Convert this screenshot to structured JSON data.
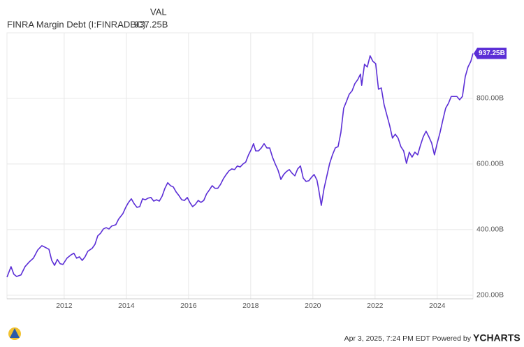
{
  "chart_data": {
    "type": "line",
    "value_header": "VAL",
    "footer": "Apr 3, 2025, 7:24 PM EDT Powered by",
    "brand": "YCHARTS",
    "grid": true,
    "xlim": [
      2010.16,
      2025.15
    ],
    "xticks": [
      2012,
      2014,
      2016,
      2018,
      2020,
      2022,
      2024
    ],
    "ylim": [
      189,
      1000
    ],
    "yticks": [
      {
        "value": 200,
        "label": "200.00B"
      },
      {
        "value": 400,
        "label": "400.00B"
      },
      {
        "value": 600,
        "label": "600.00B"
      },
      {
        "value": 800,
        "label": "800.00B"
      }
    ],
    "x": [
      2010.16,
      2010.29,
      2010.38,
      2010.47,
      2010.61,
      2010.74,
      2010.88,
      2011.01,
      2011.15,
      2011.28,
      2011.37,
      2011.51,
      2011.6,
      2011.69,
      2011.78,
      2011.87,
      2011.96,
      2012.09,
      2012.22,
      2012.31,
      2012.4,
      2012.49,
      2012.58,
      2012.67,
      2012.76,
      2012.9,
      2012.99,
      2013.08,
      2013.17,
      2013.26,
      2013.35,
      2013.44,
      2013.53,
      2013.66,
      2013.75,
      2013.89,
      2013.98,
      2014.07,
      2014.16,
      2014.25,
      2014.34,
      2014.43,
      2014.52,
      2014.61,
      2014.7,
      2014.79,
      2014.88,
      2014.97,
      2015.06,
      2015.15,
      2015.24,
      2015.33,
      2015.42,
      2015.51,
      2015.6,
      2015.69,
      2015.78,
      2015.87,
      2015.96,
      2016.04,
      2016.13,
      2016.22,
      2016.31,
      2016.4,
      2016.49,
      2016.58,
      2016.67,
      2016.76,
      2016.85,
      2016.94,
      2017.03,
      2017.12,
      2017.21,
      2017.3,
      2017.39,
      2017.48,
      2017.57,
      2017.66,
      2017.75,
      2017.84,
      2017.93,
      2018.02,
      2018.09,
      2018.16,
      2018.25,
      2018.34,
      2018.43,
      2018.52,
      2018.61,
      2018.7,
      2018.79,
      2018.88,
      2018.97,
      2019.06,
      2019.15,
      2019.24,
      2019.33,
      2019.42,
      2019.51,
      2019.6,
      2019.69,
      2019.78,
      2019.87,
      2019.96,
      2020.04,
      2020.13,
      2020.18,
      2020.27,
      2020.36,
      2020.45,
      2020.54,
      2020.63,
      2020.72,
      2020.81,
      2020.9,
      2020.99,
      2021.08,
      2021.17,
      2021.26,
      2021.35,
      2021.44,
      2021.53,
      2021.57,
      2021.66,
      2021.75,
      2021.84,
      2021.93,
      2022.02,
      2022.11,
      2022.2,
      2022.29,
      2022.38,
      2022.47,
      2022.56,
      2022.65,
      2022.74,
      2022.83,
      2022.92,
      2023.01,
      2023.1,
      2023.19,
      2023.28,
      2023.37,
      2023.46,
      2023.55,
      2023.64,
      2023.73,
      2023.82,
      2023.91,
      2024.0,
      2024.09,
      2024.18,
      2024.27,
      2024.36,
      2024.45,
      2024.54,
      2024.63,
      2024.72,
      2024.81,
      2024.9,
      2024.99,
      2025.08,
      2025.15
    ],
    "series": [
      {
        "name": "FINRA Margin Debt (I:FINRADBC)",
        "color": "#5b2ed6",
        "last_value_label": "937.25B",
        "values": [
          255,
          287,
          264,
          257,
          262,
          287,
          302,
          313,
          338,
          351,
          347,
          340,
          306,
          291,
          309,
          296,
          294,
          313,
          323,
          328,
          313,
          317,
          306,
          317,
          334,
          343,
          355,
          381,
          389,
          402,
          406,
          402,
          411,
          415,
          432,
          449,
          468,
          483,
          494,
          479,
          468,
          470,
          494,
          491,
          496,
          498,
          487,
          491,
          487,
          502,
          526,
          543,
          534,
          530,
          515,
          504,
          491,
          489,
          498,
          483,
          470,
          477,
          489,
          483,
          489,
          509,
          521,
          534,
          526,
          526,
          538,
          555,
          568,
          579,
          585,
          583,
          594,
          591,
          600,
          606,
          628,
          645,
          662,
          640,
          640,
          649,
          662,
          649,
          649,
          621,
          600,
          581,
          553,
          568,
          577,
          583,
          572,
          564,
          585,
          594,
          557,
          547,
          549,
          560,
          568,
          551,
          526,
          474,
          526,
          564,
          602,
          628,
          649,
          653,
          696,
          770,
          791,
          813,
          823,
          845,
          857,
          874,
          840,
          904,
          896,
          930,
          913,
          906,
          828,
          832,
          781,
          749,
          717,
          679,
          691,
          679,
          653,
          640,
          602,
          636,
          621,
          636,
          628,
          657,
          683,
          700,
          683,
          664,
          628,
          664,
          696,
          734,
          770,
          785,
          806,
          806,
          806,
          796,
          806,
          866,
          896,
          913,
          937.25
        ]
      }
    ]
  }
}
